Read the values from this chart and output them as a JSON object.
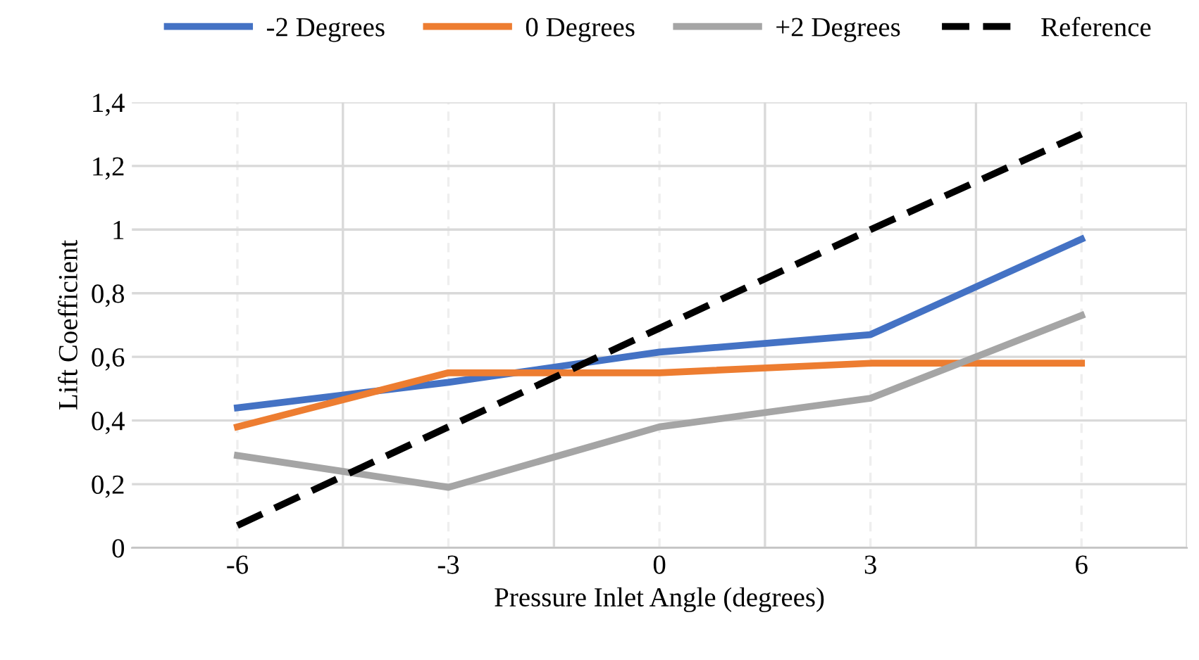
{
  "chart_data": {
    "type": "line",
    "xlabel": "Pressure Inlet Angle (degrees)",
    "ylabel": "Lift Coefficient",
    "categories": [
      "-6",
      "-3",
      "0",
      "3",
      "6"
    ],
    "series": [
      {
        "name": "-2 Degrees",
        "color": "#4472c4",
        "values": [
          0.44,
          0.52,
          0.615,
          0.67,
          0.97
        ]
      },
      {
        "name": "0 Degrees",
        "color": "#ed7d31",
        "values": [
          0.38,
          0.55,
          0.55,
          0.58,
          0.58
        ]
      },
      {
        "name": "+2 Degrees",
        "color": "#a5a5a5",
        "values": [
          0.29,
          0.19,
          0.38,
          0.47,
          0.73
        ]
      },
      {
        "name": "Reference",
        "color": "#000000",
        "line_style": "dashed",
        "values": [
          0.07,
          0.38,
          0.69,
          1.0,
          1.3
        ]
      }
    ],
    "ylim": [
      0,
      1.4
    ],
    "yticks": [
      0,
      {
        "value": 0.2,
        "label": "0,2"
      },
      {
        "value": 0.4,
        "label": "0,4"
      },
      {
        "value": 0.6,
        "label": "0,6"
      },
      {
        "value": 0.8,
        "label": "0,8"
      },
      1,
      {
        "value": 1.2,
        "label": "1,2"
      },
      {
        "value": 1.4,
        "label": "1,4"
      }
    ],
    "grid": true,
    "legend": "top",
    "marker": "none",
    "line_style": "solid"
  }
}
